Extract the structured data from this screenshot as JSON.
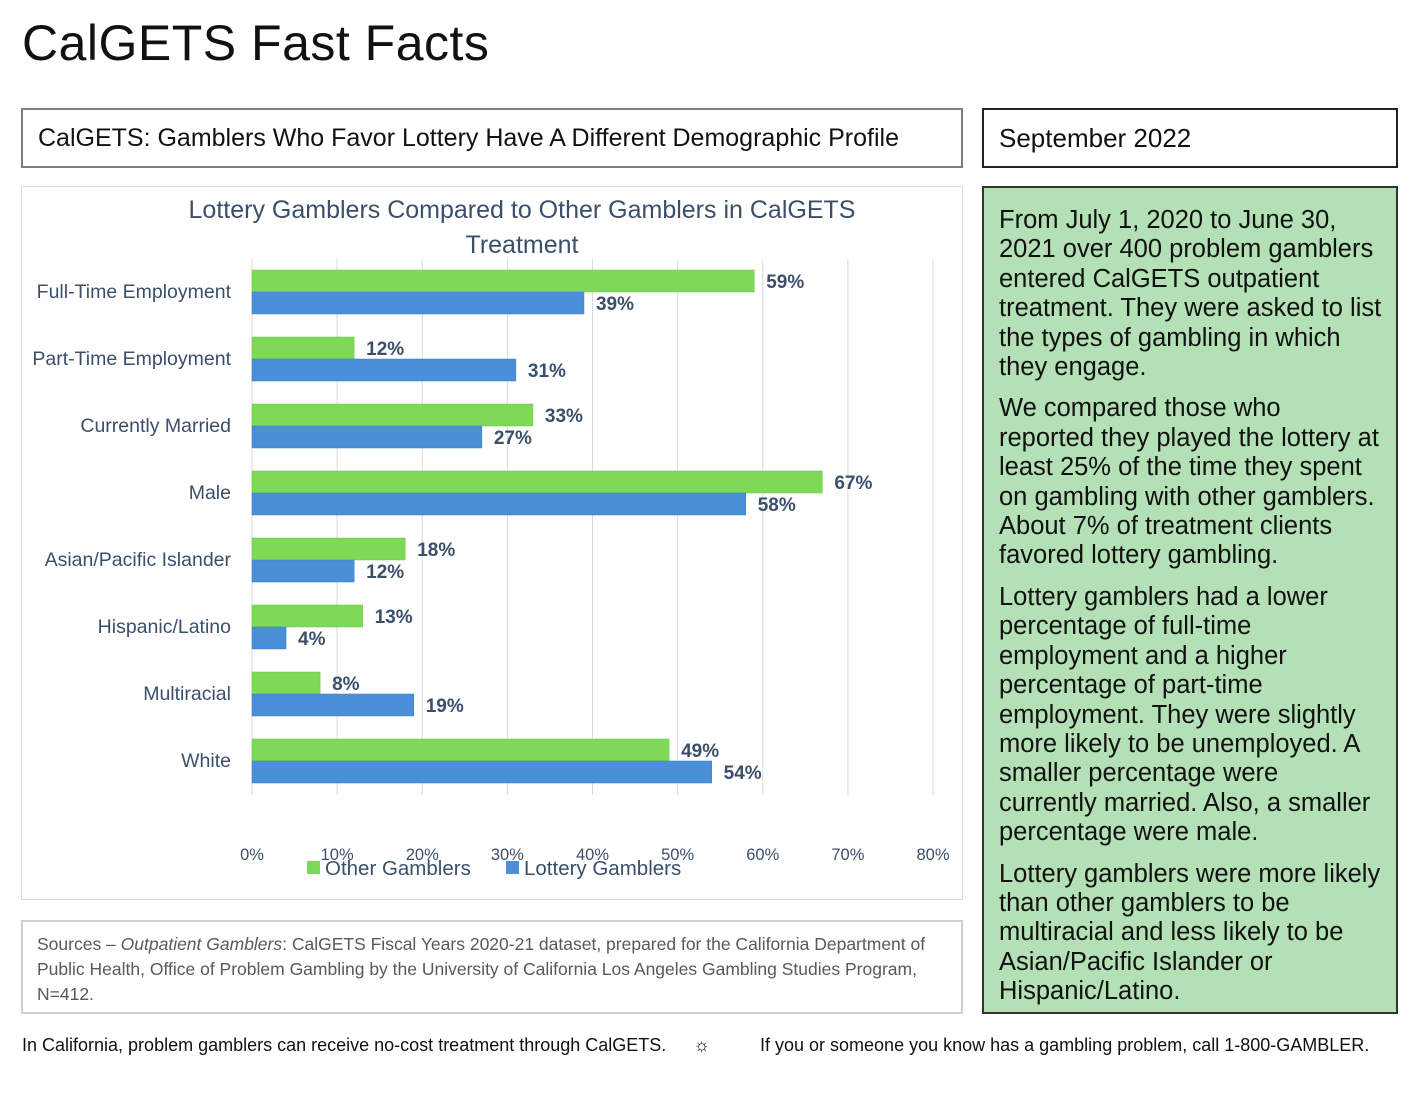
{
  "page": {
    "title": "CalGETS Fast Facts",
    "subtitle": "CalGETS: Gamblers Who Favor Lottery Have A Different Demographic Profile",
    "date": "September 2022"
  },
  "info": {
    "paragraphs": [
      "From July 1, 2020 to June 30, 2021 over 400 problem gamblers entered CalGETS outpatient treatment. They were asked to list the types of gambling in which they engage.",
      "We compared those who reported they played the lottery at least 25% of the time they spent on gambling with other gamblers. About 7% of treatment clients favored lottery gambling.",
      "Lottery gamblers had a lower percentage of full-time employment and a higher percentage of part-time employment. They were slightly more likely to be unemployed. A smaller percentage were currently married. Also, a smaller percentage were male.",
      "Lottery gamblers were more likely than other gamblers to be multiracial and less likely to be Asian/Pacific Islander or Hispanic/Latino."
    ]
  },
  "sources": {
    "prefix": "Sources – ",
    "source_name": "Outpatient Gamblers",
    "text": ": CalGETS Fiscal Years 2020-21 dataset, prepared for the California Department of Public Health, Office of Problem Gambling by the University of California Los Angeles Gambling Studies Program, N=412."
  },
  "footer": {
    "left": "In California, problem gamblers can receive no-cost treatment through CalGETS.",
    "separator": "☼",
    "right": "If you or someone you know has a gambling problem, call 1-800-GAMBLER."
  },
  "chart_data": {
    "type": "bar",
    "orientation": "horizontal",
    "title": "Lottery Gamblers Compared to Other Gamblers in CalGETS Treatment",
    "categories": [
      "Full-Time Employment",
      "Part-Time Employment",
      "Currently Married",
      "Male",
      "Asian/Pacific Islander",
      "Hispanic/Latino",
      "Multiracial",
      "White"
    ],
    "series": [
      {
        "name": "Other Gamblers",
        "values": [
          59,
          12,
          33,
          67,
          18,
          13,
          8,
          49
        ],
        "color": "#7ed957"
      },
      {
        "name": "Lottery Gamblers",
        "values": [
          39,
          31,
          27,
          58,
          12,
          4,
          19,
          54
        ],
        "color": "#4a90d9"
      }
    ],
    "data_labels": [
      [
        "59%",
        "12%",
        "33%",
        "67%",
        "18%",
        "13%",
        "8%",
        "49%"
      ],
      [
        "39%",
        "31%",
        "27%",
        "58%",
        "12%",
        "4%",
        "19%",
        "54%"
      ]
    ],
    "x_ticks": [
      "0%",
      "10%",
      "20%",
      "30%",
      "40%",
      "50%",
      "60%",
      "70%",
      "80%"
    ],
    "xlim": [
      0,
      80
    ],
    "grid": true,
    "legend_position": "bottom"
  }
}
